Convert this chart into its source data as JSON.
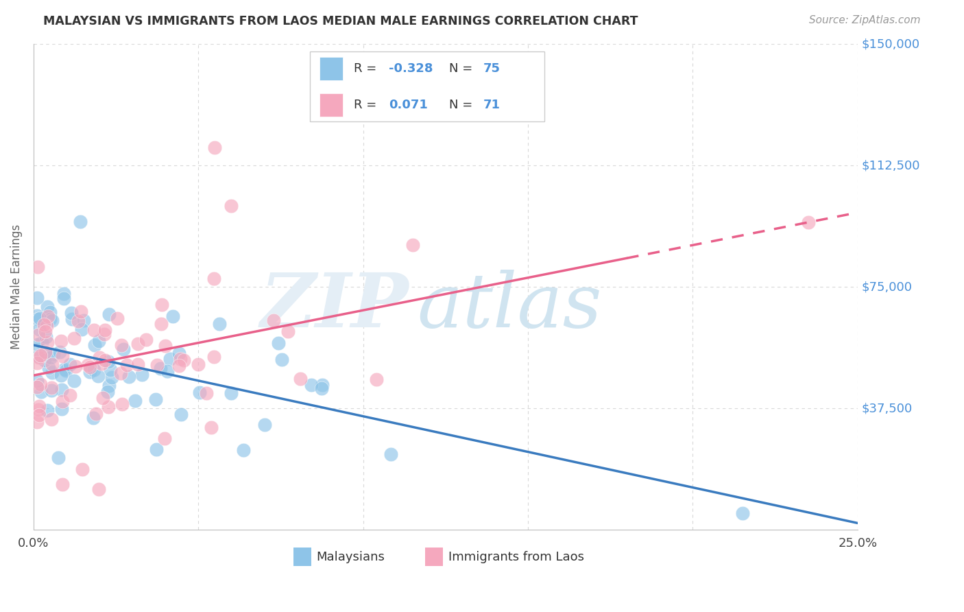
{
  "title": "MALAYSIAN VS IMMIGRANTS FROM LAOS MEDIAN MALE EARNINGS CORRELATION CHART",
  "source": "Source: ZipAtlas.com",
  "ylabel": "Median Male Earnings",
  "xlim": [
    0.0,
    0.25
  ],
  "ylim": [
    0,
    150000
  ],
  "legend_label1": "Malaysians",
  "legend_label2": "Immigrants from Laos",
  "r1": -0.328,
  "n1": 75,
  "r2": 0.071,
  "n2": 71,
  "color_blue": "#8ec4e8",
  "color_pink": "#f5a8be",
  "color_blue_line": "#3a7bbf",
  "color_pink_line": "#e8608a",
  "color_blue_text": "#4a90d9",
  "background_color": "#ffffff",
  "grid_color": "#d8d8d8",
  "title_color": "#333333",
  "source_color": "#999999",
  "label_color": "#666666"
}
